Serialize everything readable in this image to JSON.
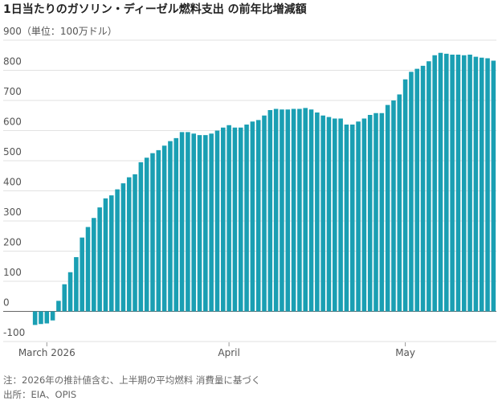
{
  "chart_data": {
    "type": "bar",
    "title": "1日当たりのガソリン・ディーゼル燃料支出 の前年比増減額",
    "categories": [
      null,
      null,
      "March 2026",
      null,
      null,
      null,
      null,
      null,
      null,
      null,
      null,
      null,
      null,
      null,
      null,
      null,
      null,
      null,
      null,
      null,
      null,
      null,
      null,
      null,
      null,
      null,
      null,
      null,
      null,
      null,
      null,
      null,
      null,
      "April",
      null,
      null,
      null,
      null,
      null,
      null,
      null,
      null,
      null,
      null,
      null,
      null,
      null,
      null,
      null,
      null,
      null,
      null,
      null,
      null,
      null,
      null,
      null,
      null,
      null,
      null,
      null,
      null,
      null,
      "May",
      null,
      null,
      null,
      null,
      null,
      null,
      null,
      null,
      null,
      null,
      null,
      null,
      null,
      null,
      null
    ],
    "values": [
      -45,
      -42,
      -40,
      -30,
      35,
      90,
      130,
      180,
      245,
      280,
      310,
      345,
      375,
      385,
      405,
      425,
      445,
      455,
      495,
      510,
      525,
      535,
      550,
      565,
      575,
      595,
      595,
      590,
      585,
      585,
      590,
      600,
      610,
      618,
      610,
      610,
      620,
      630,
      635,
      650,
      668,
      672,
      670,
      670,
      672,
      672,
      675,
      670,
      660,
      650,
      645,
      640,
      640,
      620,
      620,
      630,
      640,
      652,
      658,
      658,
      685,
      700,
      720,
      770,
      795,
      805,
      815,
      830,
      850,
      858,
      855,
      852,
      852,
      850,
      852,
      845,
      842,
      840,
      832
    ],
    "color": "#1a9fb3",
    "ylim": [
      -100,
      900
    ],
    "yticks": [
      -100,
      0,
      100,
      200,
      300,
      400,
      500,
      600,
      700,
      800,
      {
        "value": 900,
        "label": "900（単位：100万ドル）"
      }
    ],
    "grid": true,
    "notes": [
      "注：2026年の推計値含む、上半期の平均燃料 消費量に基づく",
      "出所：EIA、OPIS"
    ]
  }
}
